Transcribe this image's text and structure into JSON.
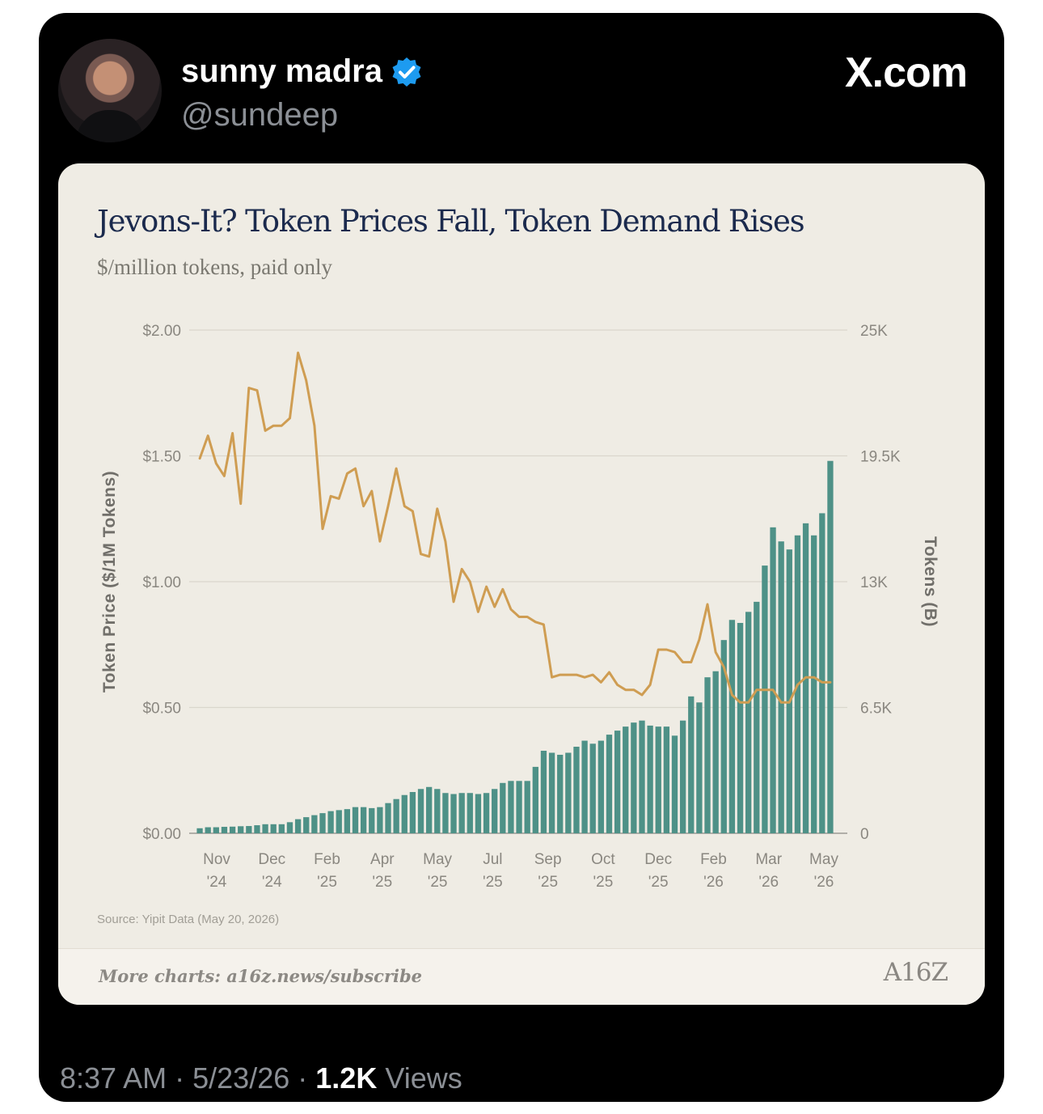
{
  "author": {
    "name": "sunny madra",
    "handle": "@sundeep",
    "verified_color": "#1d9bf0"
  },
  "brand": "X.com",
  "card": {
    "title": "Jevons-It? Token Prices Fall, Token Demand Rises",
    "subtitle": "$/million tokens, paid only",
    "source": "Source: Yipit Data (May 20, 2026)",
    "more_charts": "More charts: a16z.news/subscribe",
    "logo": "A16Z"
  },
  "meta": {
    "time": "8:37 AM",
    "date": "5/23/26",
    "views_count": "1.2K",
    "views_label": "Views",
    "separator": "·"
  },
  "colors": {
    "bar": "#4e9187",
    "line": "#cf9d52",
    "title": "#1b2a4d",
    "card_bg": "#efece4"
  },
  "chart_data": {
    "type": "bar",
    "left_axis_title": "Token Price ($/1M Tokens)",
    "right_axis_title": "Tokens (B)",
    "left_ticks": [
      "$0.00",
      "$0.50",
      "$1.00",
      "$1.50",
      "$2.00"
    ],
    "left_range": [
      0,
      2
    ],
    "right_ticks": [
      "0",
      "6.5K",
      "13K",
      "19.5K",
      "25K"
    ],
    "right_range": [
      0,
      25
    ],
    "x_ticks": [
      {
        "top": "Nov",
        "bottom": "'24"
      },
      {
        "top": "Dec",
        "bottom": "'24"
      },
      {
        "top": "Feb",
        "bottom": "'25"
      },
      {
        "top": "Apr",
        "bottom": "'25"
      },
      {
        "top": "May",
        "bottom": "'25"
      },
      {
        "top": "Jul",
        "bottom": "'25"
      },
      {
        "top": "Sep",
        "bottom": "'25"
      },
      {
        "top": "Oct",
        "bottom": "'25"
      },
      {
        "top": "Dec",
        "bottom": "'25"
      },
      {
        "top": "Feb",
        "bottom": "'26"
      },
      {
        "top": "Mar",
        "bottom": "'26"
      },
      {
        "top": "May",
        "bottom": "'26"
      }
    ],
    "series": [
      {
        "name": "Tokens (B)",
        "kind": "bar",
        "values": [
          0.25,
          0.3,
          0.3,
          0.32,
          0.33,
          0.35,
          0.36,
          0.4,
          0.45,
          0.45,
          0.45,
          0.55,
          0.7,
          0.8,
          0.9,
          1.0,
          1.1,
          1.15,
          1.2,
          1.3,
          1.3,
          1.25,
          1.3,
          1.5,
          1.7,
          1.9,
          2.05,
          2.2,
          2.3,
          2.2,
          2.0,
          1.95,
          2.0,
          2.0,
          1.95,
          2.0,
          2.2,
          2.5,
          2.6,
          2.6,
          2.6,
          3.3,
          4.1,
          4.0,
          3.9,
          4.0,
          4.3,
          4.6,
          4.45,
          4.6,
          4.9,
          5.1,
          5.3,
          5.5,
          5.6,
          5.35,
          5.3,
          5.3,
          4.85,
          5.6,
          6.8,
          6.5,
          7.75,
          8.05,
          9.6,
          10.6,
          10.45,
          11.0,
          11.5,
          13.3,
          15.2,
          14.5,
          14.1,
          14.8,
          15.4,
          14.8,
          15.9,
          18.5
        ]
      },
      {
        "name": "Token Price ($/1M Tokens)",
        "kind": "line",
        "values": [
          1.49,
          1.58,
          1.47,
          1.42,
          1.59,
          1.31,
          1.77,
          1.76,
          1.6,
          1.62,
          1.62,
          1.65,
          1.91,
          1.8,
          1.62,
          1.21,
          1.34,
          1.33,
          1.43,
          1.45,
          1.3,
          1.36,
          1.16,
          1.3,
          1.45,
          1.3,
          1.28,
          1.11,
          1.1,
          1.29,
          1.16,
          0.92,
          1.05,
          1.0,
          0.88,
          0.98,
          0.9,
          0.97,
          0.89,
          0.86,
          0.86,
          0.84,
          0.83,
          0.62,
          0.63,
          0.63,
          0.63,
          0.62,
          0.63,
          0.6,
          0.64,
          0.59,
          0.57,
          0.57,
          0.55,
          0.59,
          0.73,
          0.73,
          0.72,
          0.68,
          0.68,
          0.77,
          0.91,
          0.72,
          0.66,
          0.55,
          0.52,
          0.52,
          0.57,
          0.57,
          0.57,
          0.52,
          0.52,
          0.59,
          0.62,
          0.62,
          0.6,
          0.6
        ]
      }
    ],
    "grid": true
  }
}
